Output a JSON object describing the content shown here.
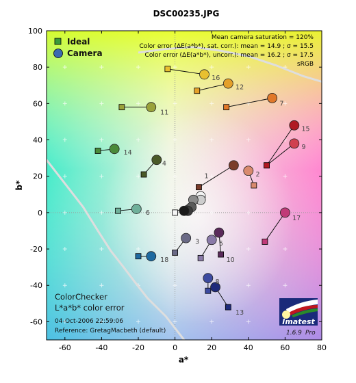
{
  "chart_data": {
    "type": "scatter",
    "title": "DSC00235.JPG",
    "xlabel": "a*",
    "ylabel": "b*",
    "xlim": [
      -70,
      80
    ],
    "ylim": [
      -70,
      100
    ],
    "xticks": [
      -60,
      -40,
      -20,
      0,
      20,
      40,
      60,
      80
    ],
    "yticks": [
      -60,
      -40,
      -20,
      0,
      20,
      40,
      60,
      80,
      100
    ],
    "gamut_label": "sRGB",
    "stats": [
      "Mean camera saturation = 120%",
      "Color error (ΔE(a*b*), sat. corr.):  mean = 14.9 ;  σ = 15.5",
      "Color error (ΔE(a*b*), uncorr.):  mean = 16.2 ;  σ = 17.5"
    ],
    "legend": [
      {
        "label": "Ideal",
        "marker": "square"
      },
      {
        "label": "Camera",
        "marker": "circle"
      }
    ],
    "series": [
      {
        "name": "Ideal",
        "points": [
          {
            "patch": 1,
            "a": 13,
            "b": 14
          },
          {
            "patch": 2,
            "a": 43,
            "b": 15
          },
          {
            "patch": 3,
            "a": 0,
            "b": -22
          },
          {
            "patch": 4,
            "a": -17,
            "b": 21
          },
          {
            "patch": 5,
            "a": 14,
            "b": -25
          },
          {
            "patch": 6,
            "a": -31,
            "b": 1
          },
          {
            "patch": 7,
            "a": 28,
            "b": 58
          },
          {
            "patch": 8,
            "a": 18,
            "b": -43
          },
          {
            "patch": 9,
            "a": 50,
            "b": 26
          },
          {
            "patch": 10,
            "a": 25,
            "b": -23
          },
          {
            "patch": 11,
            "a": -29,
            "b": 58
          },
          {
            "patch": 12,
            "a": 12,
            "b": 67
          },
          {
            "patch": 13,
            "a": 29,
            "b": -52
          },
          {
            "patch": 14,
            "a": -42,
            "b": 34
          },
          {
            "patch": 15,
            "a": 50,
            "b": 26
          },
          {
            "patch": 16,
            "a": -4,
            "b": 79
          },
          {
            "patch": 17,
            "a": 49,
            "b": -16
          },
          {
            "patch": 18,
            "a": -20,
            "b": -24
          },
          {
            "patch": 19,
            "a": 0,
            "b": 0
          }
        ]
      },
      {
        "name": "Camera",
        "points": [
          {
            "patch": 1,
            "a": 32,
            "b": 26,
            "color": "#7a3c2a"
          },
          {
            "patch": 2,
            "a": 40,
            "b": 23,
            "color": "#d98a6e"
          },
          {
            "patch": 3,
            "a": 6,
            "b": -14,
            "color": "#6a6a86"
          },
          {
            "patch": 4,
            "a": -10,
            "b": 29,
            "color": "#4a5a28"
          },
          {
            "patch": 5,
            "a": 20,
            "b": -15,
            "color": "#8a7aa8"
          },
          {
            "patch": 6,
            "a": -21,
            "b": 2,
            "color": "#6fb09a"
          },
          {
            "patch": 7,
            "a": 53,
            "b": 63,
            "color": "#e0782a"
          },
          {
            "patch": 8,
            "a": 18,
            "b": -36,
            "color": "#3c4aa0"
          },
          {
            "patch": 9,
            "a": 65,
            "b": 38,
            "color": "#d04050"
          },
          {
            "patch": 10,
            "a": 24,
            "b": -11,
            "color": "#5a2a5a"
          },
          {
            "patch": 11,
            "a": -13,
            "b": 58,
            "color": "#9aa23a"
          },
          {
            "patch": 12,
            "a": 29,
            "b": 71,
            "color": "#e4a02a"
          },
          {
            "patch": 13,
            "a": 22,
            "b": -41,
            "color": "#1e2a7a"
          },
          {
            "patch": 14,
            "a": -33,
            "b": 35,
            "color": "#4a8a3a"
          },
          {
            "patch": 15,
            "a": 65,
            "b": 48,
            "color": "#b01a22"
          },
          {
            "patch": 16,
            "a": 16,
            "b": 76,
            "color": "#e8c030"
          },
          {
            "patch": 17,
            "a": 60,
            "b": 0,
            "color": "#c03a78"
          },
          {
            "patch": 18,
            "a": -13,
            "b": -24,
            "color": "#1e6aa0"
          },
          {
            "patch": 19,
            "a": 14,
            "b": 9,
            "color": "#f4f4f4"
          },
          {
            "patch": 20,
            "a": 14,
            "b": 7,
            "color": "#cdcdcd"
          },
          {
            "patch": 21,
            "a": 10,
            "b": 7,
            "color": "#8a8a8a"
          },
          {
            "patch": 22,
            "a": 9,
            "b": 3,
            "color": "#5a5a5a"
          },
          {
            "patch": 23,
            "a": 7,
            "b": 1,
            "color": "#3a3a3a"
          },
          {
            "patch": 24,
            "a": 5,
            "b": 1,
            "color": "#1a1a1a"
          }
        ]
      }
    ],
    "patch_labels": [
      {
        "text": "1",
        "a": 16,
        "b": 20
      },
      {
        "text": "2",
        "a": 44,
        "b": 21
      },
      {
        "text": "3",
        "a": 11,
        "b": -16
      },
      {
        "text": "4",
        "a": -7,
        "b": 27
      },
      {
        "text": "5",
        "a": 24,
        "b": -17
      },
      {
        "text": "6",
        "a": -16,
        "b": 0
      },
      {
        "text": "7",
        "a": 57,
        "b": 60
      },
      {
        "text": "8",
        "a": 22,
        "b": -38
      },
      {
        "text": "9",
        "a": 69,
        "b": 36
      },
      {
        "text": "10",
        "a": 28,
        "b": -26
      },
      {
        "text": "11",
        "a": -8,
        "b": 55
      },
      {
        "text": "12",
        "a": 33,
        "b": 69
      },
      {
        "text": "13",
        "a": 33,
        "b": -55
      },
      {
        "text": "14",
        "a": -28,
        "b": 33
      },
      {
        "text": "15",
        "a": 69,
        "b": 46
      },
      {
        "text": "16",
        "a": 20,
        "b": 74
      },
      {
        "text": "17",
        "a": 64,
        "b": -3
      },
      {
        "text": "18",
        "a": -8,
        "b": -26
      }
    ],
    "annotation": {
      "title_lines": [
        "ColorChecker",
        "L*a*b* color error"
      ],
      "timestamp": "04-Oct-2006 22:59:06",
      "reference": "Reference: GretagMacbeth (default)"
    },
    "logo": {
      "text": "Imatest",
      "version": "1.6.9",
      "edition": "Pro"
    }
  }
}
